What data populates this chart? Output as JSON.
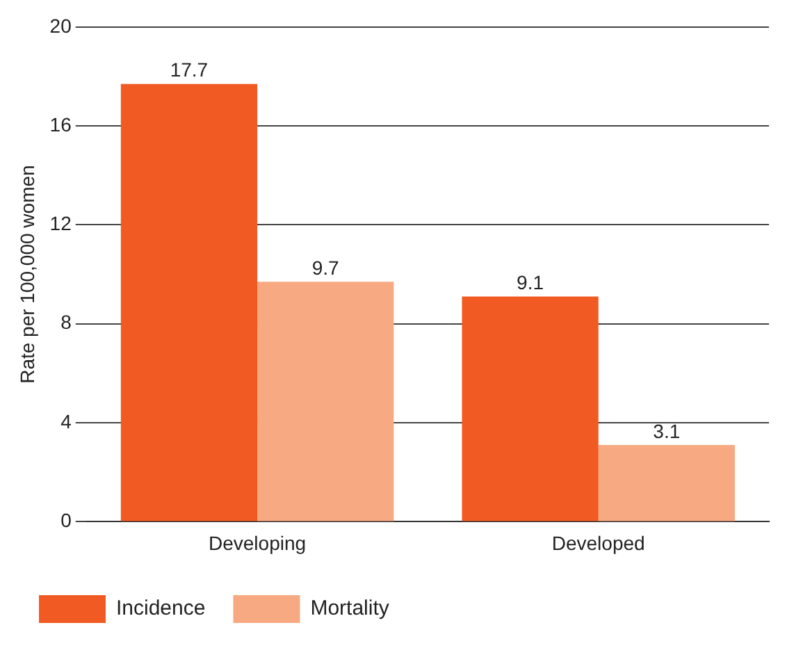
{
  "chart_data": {
    "type": "bar",
    "ylabel": "Rate per 100,000 women",
    "categories": [
      "Developing",
      "Developed"
    ],
    "series": [
      {
        "name": "Incidence",
        "color": "#f15a22",
        "values": [
          17.7,
          9.1
        ]
      },
      {
        "name": "Mortality",
        "color": "#f7a982",
        "values": [
          9.7,
          3.1
        ]
      }
    ],
    "ylim": [
      0,
      20
    ],
    "yticks": [
      0,
      4,
      8,
      12,
      16,
      20
    ],
    "grid": "y",
    "legend": "bottom left",
    "data_labels": true
  }
}
